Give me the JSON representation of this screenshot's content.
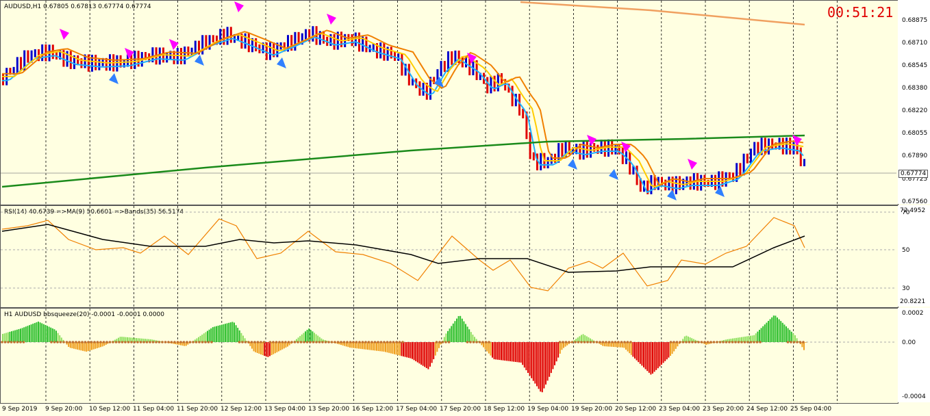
{
  "main": {
    "title": "AUDUSD,H1  0.67805 0.67813 0.67774 0.67774",
    "clock": "00:51:21",
    "price_labels": [
      "0.68875",
      "0.68710",
      "0.68545",
      "0.68380",
      "0.68220",
      "0.68055",
      "0.67890",
      "0.67725",
      "0.67560"
    ],
    "current_price": "0.67774"
  },
  "rsi": {
    "title": "RSI(14) 40.6739  =>MA(9) 50.6601  =>Bands(35) 56.5174",
    "labels": [
      "70",
      "50",
      "30"
    ],
    "top_value": "72.4952",
    "bottom_value": "20.8221"
  },
  "squeeze": {
    "title": "H1 AUDUSD bbsqueeze(20) -0.0001 -0.0001 0.0000",
    "labels": [
      "0.0002",
      "0.00",
      "-0.0004"
    ]
  },
  "x_axis": [
    "9 Sep 2019",
    "9 Sep 20:00",
    "10 Sep 12:00",
    "11 Sep 04:00",
    "11 Sep 20:00",
    "12 Sep 12:00",
    "13 Sep 04:00",
    "13 Sep 20:00",
    "16 Sep 12:00",
    "17 Sep 04:00",
    "17 Sep 20:00",
    "18 Sep 12:00",
    "19 Sep 04:00",
    "19 Sep 20:00",
    "20 Sep 12:00",
    "23 Sep 04:00",
    "23 Sep 20:00",
    "24 Sep 12:00",
    "25 Sep 04:00"
  ],
  "colors": {
    "bull": "#0000cc",
    "bear": "#e00000",
    "ma_fast": "#20b0ff",
    "ma_med": "#ffcc00",
    "ma_slow": "#f08000",
    "ma_long": "#1a8a1a",
    "ma_top": "#f0a060",
    "arrow_up": "#3080ff",
    "arrow_down": "#ff00ff",
    "rsi": "#f08000",
    "rsi_ma": "#000000"
  }
}
